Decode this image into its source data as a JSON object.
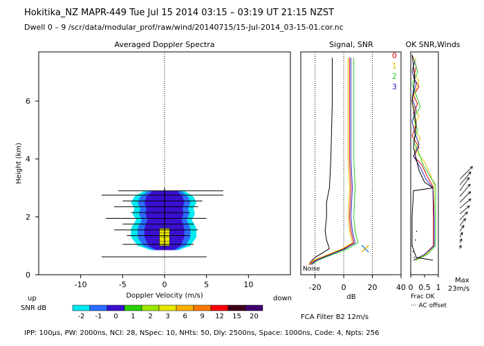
{
  "header": {
    "line1": "Hokitika_NZ   MAPR-449   Tue Jul 15 2014 03:15 – 03:19 UT 21:15 NZST",
    "line2": "Dwell   0 –   9    /scr/data/modular_prof/raw/wind/20140715/15-Jul-2014_03-15-01.cor.nc"
  },
  "chart_data": [
    {
      "type": "heatmap",
      "title": "Averaged Doppler Spectra",
      "xlabel": "Doppler Velocity (m/s)",
      "ylabel": "Height (km)",
      "xlim": [
        -15,
        15
      ],
      "ylim": [
        0,
        7.7
      ],
      "xticks": [
        -10,
        -5,
        0,
        5,
        10
      ],
      "yticks": [
        0,
        2,
        4,
        6
      ],
      "dir_left": "up",
      "dir_right": "down",
      "width_bars": [
        {
          "h": 0.62,
          "x0": -7.5,
          "x1": 5.0
        },
        {
          "h": 1.05,
          "x0": -5.0,
          "x1": 3.5
        },
        {
          "h": 1.35,
          "x0": -4.5,
          "x1": 3.0
        },
        {
          "h": 1.55,
          "x0": -6.0,
          "x1": 4.0
        },
        {
          "h": 1.75,
          "x0": -5.0,
          "x1": 3.5
        },
        {
          "h": 1.95,
          "x0": -7.0,
          "x1": 5.0
        },
        {
          "h": 2.15,
          "x0": -4.0,
          "x1": 3.0
        },
        {
          "h": 2.35,
          "x0": -6.0,
          "x1": 4.0
        },
        {
          "h": 2.55,
          "x0": -5.0,
          "x1": 4.5
        },
        {
          "h": 2.75,
          "x0": -7.5,
          "x1": 7.0
        },
        {
          "h": 2.9,
          "x0": -5.5,
          "x1": 7.0
        }
      ],
      "core": {
        "h0": 0.85,
        "h1": 3.0,
        "velocity": 0
      }
    },
    {
      "type": "line",
      "title": "Signal, SNR",
      "xlabel": "dB",
      "xlim": [
        -30,
        40
      ],
      "ylim": [
        0,
        7.7
      ],
      "xticks": [
        -20,
        0,
        20,
        40
      ],
      "noise_label": "Noise",
      "series": [
        {
          "name": "signal",
          "color": "#000000",
          "points": [
            [
              -8,
              7.5
            ],
            [
              -8,
              6
            ],
            [
              -9,
              4
            ],
            [
              -10,
              3.0
            ],
            [
              -12,
              2.5
            ],
            [
              -12,
              2.0
            ],
            [
              -13,
              1.5
            ],
            [
              -12,
              1.2
            ],
            [
              -10,
              0.9
            ],
            [
              -20,
              0.6
            ],
            [
              -24,
              0.4
            ]
          ]
        },
        {
          "name": "snr-0",
          "color": "#d40000",
          "points": [
            [
              4,
              7.5
            ],
            [
              4,
              6
            ],
            [
              4,
              4
            ],
            [
              5,
              3
            ],
            [
              4,
              2
            ],
            [
              5,
              1.5
            ],
            [
              7,
              1.1
            ],
            [
              0,
              0.9
            ],
            [
              -20,
              0.5
            ],
            [
              -24,
              0.35
            ]
          ]
        },
        {
          "name": "snr-1",
          "color": "#e8c000",
          "points": [
            [
              3,
              7.5
            ],
            [
              3,
              6
            ],
            [
              3,
              4
            ],
            [
              4,
              3
            ],
            [
              3,
              2
            ],
            [
              4,
              1.5
            ],
            [
              6,
              1.1
            ],
            [
              -1,
              0.9
            ],
            [
              -21,
              0.5
            ],
            [
              -25,
              0.35
            ]
          ]
        },
        {
          "name": "snr-2",
          "color": "#22cc22",
          "points": [
            [
              7,
              7.5
            ],
            [
              7,
              6
            ],
            [
              7,
              4
            ],
            [
              8,
              3
            ],
            [
              7,
              2
            ],
            [
              8,
              1.5
            ],
            [
              10,
              1.1
            ],
            [
              3,
              0.9
            ],
            [
              -18,
              0.5
            ],
            [
              -22,
              0.35
            ]
          ]
        },
        {
          "name": "snr-3",
          "color": "#2222bb",
          "points": [
            [
              5,
              7.5
            ],
            [
              5,
              6
            ],
            [
              5,
              4
            ],
            [
              6,
              3
            ],
            [
              5,
              2
            ],
            [
              6,
              1.5
            ],
            [
              8,
              1.1
            ],
            [
              1,
              0.9
            ],
            [
              -19,
              0.5
            ],
            [
              -23,
              0.35
            ]
          ]
        }
      ],
      "marker": {
        "x": 15,
        "h": 0.9
      }
    },
    {
      "type": "line",
      "title": "OK SNR,Winds",
      "xlim": [
        0,
        1
      ],
      "ylim": [
        0,
        7.7
      ],
      "xticks": [
        0,
        0.5,
        1
      ],
      "xlabel": "Frac OK",
      "legend": [
        "0",
        "1",
        "2",
        "3"
      ],
      "legend_colors": [
        "#d40000",
        "#e8c000",
        "#22cc22",
        "#2222bb"
      ],
      "offset_label": "AC offset",
      "max_label": "Max",
      "max_value": "23m/s",
      "series": [
        {
          "name": "ok-0",
          "color": "#d40000",
          "points": [
            [
              0.05,
              7.6
            ],
            [
              0.2,
              7.2
            ],
            [
              0.1,
              6.8
            ],
            [
              0.3,
              6.5
            ],
            [
              0.1,
              6.2
            ],
            [
              0.25,
              5.9
            ],
            [
              0.1,
              5.6
            ],
            [
              0.2,
              5.2
            ],
            [
              0.05,
              4.8
            ],
            [
              0.3,
              4.4
            ],
            [
              0.1,
              4.1
            ],
            [
              0.4,
              3.8
            ],
            [
              0.6,
              3.4
            ],
            [
              0.8,
              3.05
            ],
            [
              0.82,
              2.0
            ],
            [
              0.82,
              1.0
            ],
            [
              0.5,
              0.7
            ],
            [
              0.1,
              0.5
            ]
          ]
        },
        {
          "name": "ok-1",
          "color": "#e8c000",
          "points": [
            [
              0.2,
              7.5
            ],
            [
              0.05,
              7.1
            ],
            [
              0.3,
              6.7
            ],
            [
              0.15,
              6.3
            ],
            [
              0.05,
              5.9
            ],
            [
              0.3,
              5.5
            ],
            [
              0.1,
              5.1
            ],
            [
              0.35,
              4.7
            ],
            [
              0.15,
              4.3
            ],
            [
              0.5,
              3.9
            ],
            [
              0.7,
              3.5
            ],
            [
              0.85,
              3.1
            ],
            [
              0.85,
              2.0
            ],
            [
              0.85,
              1.0
            ],
            [
              0.55,
              0.7
            ],
            [
              0.15,
              0.5
            ]
          ]
        },
        {
          "name": "ok-2",
          "color": "#22cc22",
          "points": [
            [
              0.1,
              7.5
            ],
            [
              0.25,
              7.0
            ],
            [
              0.05,
              6.6
            ],
            [
              0.2,
              6.2
            ],
            [
              0.35,
              5.8
            ],
            [
              0.1,
              5.4
            ],
            [
              0.25,
              5.0
            ],
            [
              0.1,
              4.6
            ],
            [
              0.3,
              4.2
            ],
            [
              0.45,
              3.8
            ],
            [
              0.7,
              3.4
            ],
            [
              0.9,
              3.1
            ],
            [
              0.9,
              2.0
            ],
            [
              0.9,
              1.0
            ],
            [
              0.6,
              0.7
            ],
            [
              0.2,
              0.5
            ]
          ]
        },
        {
          "name": "ok-3",
          "color": "#2222bb",
          "points": [
            [
              0.15,
              7.4
            ],
            [
              0.05,
              7.0
            ],
            [
              0.2,
              6.6
            ],
            [
              0.05,
              6.1
            ],
            [
              0.2,
              5.7
            ],
            [
              0.05,
              5.3
            ],
            [
              0.15,
              4.9
            ],
            [
              0.3,
              4.5
            ],
            [
              0.1,
              4.1
            ],
            [
              0.35,
              3.7
            ],
            [
              0.55,
              3.3
            ],
            [
              0.8,
              3.0
            ],
            [
              0.85,
              2.0
            ],
            [
              0.85,
              1.0
            ],
            [
              0.5,
              0.7
            ],
            [
              0.1,
              0.5
            ]
          ]
        },
        {
          "name": "ok-winds",
          "color": "#000000",
          "points": [
            [
              0.05,
              7.6
            ],
            [
              0.15,
              6.8
            ],
            [
              0.05,
              6.0
            ],
            [
              0.2,
              5.2
            ],
            [
              0.1,
              4.4
            ],
            [
              0.3,
              3.6
            ],
            [
              0.5,
              3.2
            ],
            [
              0.8,
              3.0
            ],
            [
              0.1,
              2.9
            ],
            [
              0.05,
              2.0
            ],
            [
              0.05,
              1.0
            ],
            [
              0.2,
              0.6
            ],
            [
              0.8,
              0.5
            ]
          ]
        }
      ],
      "wind_arrows": [
        {
          "h": 3.3,
          "dir": 45,
          "len": 1.0
        },
        {
          "h": 3.1,
          "dir": 40,
          "len": 0.95
        },
        {
          "h": 2.9,
          "dir": 35,
          "len": 0.9
        },
        {
          "h": 2.7,
          "dir": 40,
          "len": 0.9
        },
        {
          "h": 2.5,
          "dir": 45,
          "len": 0.85
        },
        {
          "h": 2.3,
          "dir": 50,
          "len": 0.8
        },
        {
          "h": 2.1,
          "dir": 50,
          "len": 0.7
        },
        {
          "h": 1.9,
          "dir": 45,
          "len": 0.6
        },
        {
          "h": 1.7,
          "dir": 40,
          "len": 0.5
        },
        {
          "h": 1.5,
          "dir": 35,
          "len": 0.4
        },
        {
          "h": 1.3,
          "dir": 30,
          "len": 0.3
        },
        {
          "h": 1.1,
          "dir": 25,
          "len": 0.25
        },
        {
          "h": 0.9,
          "dir": 20,
          "len": 0.2
        }
      ]
    }
  ],
  "colorbar": {
    "label": "SNR dB",
    "values": [
      "-2",
      "-1",
      "0",
      "1",
      "2",
      "3",
      "6",
      "9",
      "12",
      "15",
      "20"
    ],
    "colors": [
      "#00e8f0",
      "#2a6cff",
      "#3a10d0",
      "#2bd000",
      "#9be800",
      "#e8e800",
      "#f8b000",
      "#f87800",
      "#f80000",
      "#400018",
      "#400070"
    ]
  },
  "fca_label": "FCA Filter B2 12m/s",
  "footer": "IPP: 100μs,  PW: 2000ns,  NCI:  28,  NSpec: 10,  NHts: 50,  Dly: 2500ns,  Space: 1000ns,  Code: 4,  Npts: 256"
}
